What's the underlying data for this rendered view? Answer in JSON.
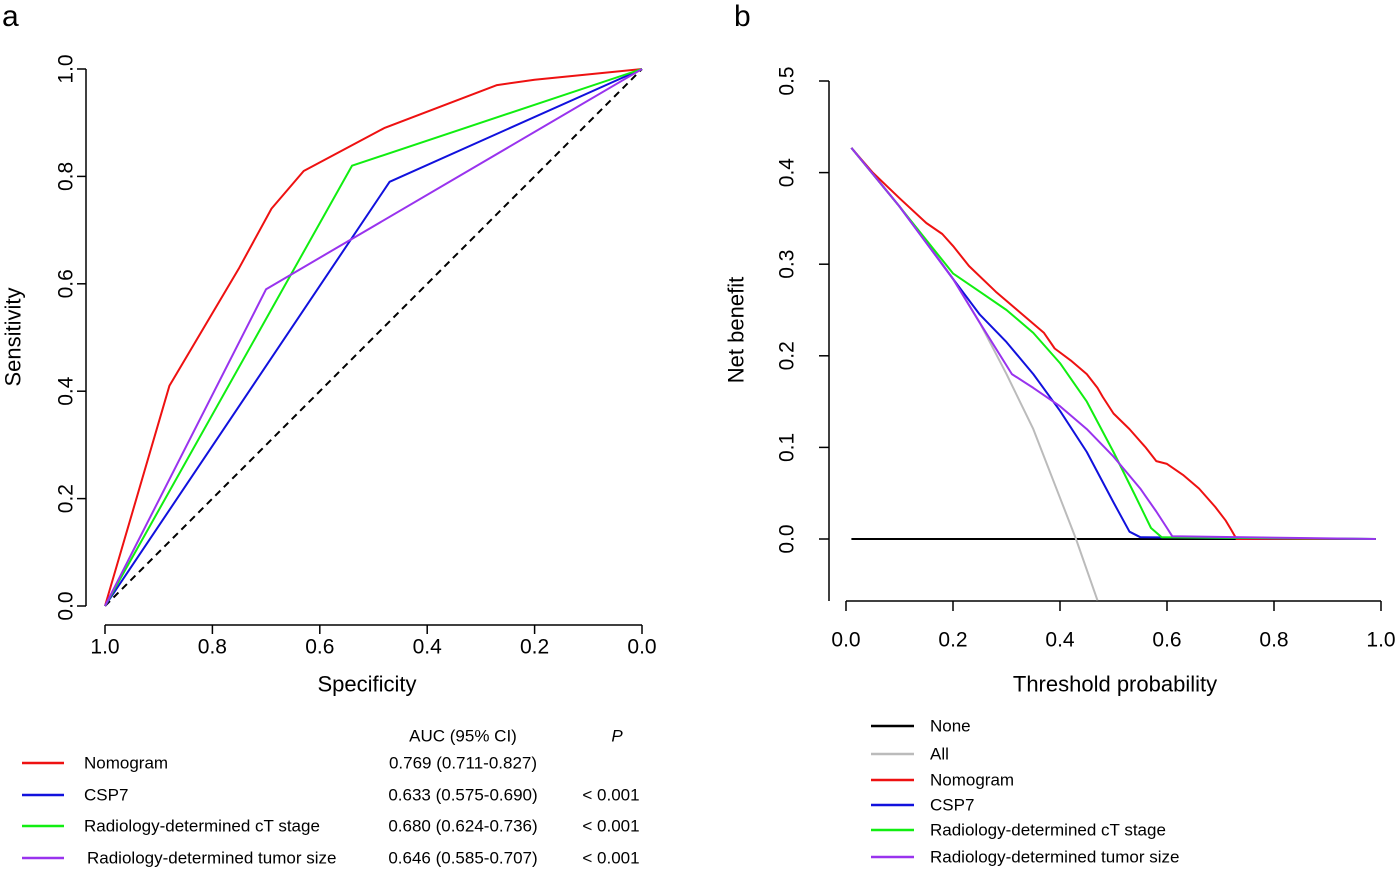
{
  "panels": {
    "a_label": "a",
    "b_label": "b"
  },
  "chart_data": [
    {
      "type": "line",
      "panel": "a",
      "xlabel": "Specificity",
      "ylabel": "Sensitivity",
      "xlim": [
        1.0,
        0.0
      ],
      "ylim": [
        0.0,
        1.0
      ],
      "x_reversed": true,
      "xticks": [
        "1.0",
        "0.8",
        "0.6",
        "0.4",
        "0.2",
        "0.0"
      ],
      "yticks": [
        "0.0",
        "0.2",
        "0.4",
        "0.6",
        "0.8",
        "1.0"
      ],
      "grid": false,
      "legend_position": "bottom",
      "reference_line": {
        "style": "dashed",
        "color": "#000000",
        "x": [
          1.0,
          0.0
        ],
        "y": [
          0.0,
          1.0
        ]
      },
      "table_headers": {
        "auc": "AUC (95% CI)",
        "p": "P"
      },
      "series": [
        {
          "name": "Nomogram",
          "color": "#ee1111",
          "auc": "0.769 (0.711-0.827)",
          "p": "",
          "x": [
            1.0,
            0.88,
            0.75,
            0.69,
            0.63,
            0.48,
            0.27,
            0.2,
            0.0
          ],
          "y": [
            0.0,
            0.41,
            0.63,
            0.74,
            0.81,
            0.89,
            0.97,
            0.98,
            1.0
          ]
        },
        {
          "name": "CSP7",
          "color": "#1111dd",
          "auc": "0.633 (0.575-0.690)",
          "p": "< 0.001",
          "x": [
            1.0,
            0.47,
            0.0
          ],
          "y": [
            0.0,
            0.79,
            1.0
          ]
        },
        {
          "name": "Radiology-determined cT stage",
          "color": "#11ee11",
          "auc": "0.680 (0.624-0.736)",
          "p": "< 0.001",
          "x": [
            1.0,
            0.54,
            0.0
          ],
          "y": [
            0.0,
            0.82,
            1.0
          ]
        },
        {
          "name": "Radiology-determined tumor size",
          "color": "#9933ee",
          "auc": "0.646 (0.585-0.707)",
          "p": "< 0.001",
          "x": [
            1.0,
            0.7,
            0.0
          ],
          "y": [
            0.0,
            0.59,
            1.0
          ]
        }
      ]
    },
    {
      "type": "line",
      "panel": "b",
      "xlabel": "Threshold probability",
      "ylabel": "Net benefit",
      "xlim": [
        -0.02,
        1.02
      ],
      "ylim": [
        -0.07,
        0.5
      ],
      "xticks": [
        "0.0",
        "0.2",
        "0.4",
        "0.6",
        "0.8",
        "1.0"
      ],
      "yticks": [
        "0.0",
        "0.1",
        "0.2",
        "0.3",
        "0.4",
        "0.5"
      ],
      "grid": false,
      "legend_position": "bottom",
      "series": [
        {
          "name": "None",
          "color": "#000000",
          "x": [
            0.01,
            0.99
          ],
          "y": [
            0.0,
            0.0
          ]
        },
        {
          "name": "All",
          "color": "#bbbbbb",
          "x": [
            0.01,
            0.05,
            0.1,
            0.15,
            0.2,
            0.25,
            0.3,
            0.35,
            0.4,
            0.43,
            0.47
          ],
          "y": [
            0.427,
            0.399,
            0.363,
            0.325,
            0.284,
            0.236,
            0.18,
            0.12,
            0.045,
            0.0,
            -0.067
          ]
        },
        {
          "name": "Nomogram",
          "color": "#ee1111",
          "x": [
            0.01,
            0.05,
            0.1,
            0.15,
            0.18,
            0.2,
            0.23,
            0.28,
            0.32,
            0.35,
            0.37,
            0.39,
            0.42,
            0.45,
            0.47,
            0.48,
            0.5,
            0.53,
            0.56,
            0.58,
            0.6,
            0.63,
            0.66,
            0.69,
            0.71,
            0.72,
            0.73,
            0.99
          ],
          "y": [
            0.427,
            0.4,
            0.372,
            0.345,
            0.333,
            0.32,
            0.298,
            0.27,
            0.25,
            0.235,
            0.225,
            0.208,
            0.195,
            0.18,
            0.165,
            0.155,
            0.137,
            0.12,
            0.1,
            0.085,
            0.082,
            0.07,
            0.055,
            0.035,
            0.02,
            0.01,
            0.0,
            0.0
          ]
        },
        {
          "name": "CSP7",
          "color": "#1111dd",
          "x": [
            0.01,
            0.1,
            0.2,
            0.25,
            0.3,
            0.35,
            0.4,
            0.45,
            0.5,
            0.53,
            0.55,
            0.99
          ],
          "y": [
            0.427,
            0.363,
            0.284,
            0.245,
            0.215,
            0.18,
            0.14,
            0.095,
            0.04,
            0.008,
            0.002,
            0.0
          ]
        },
        {
          "name": "Radiology-determined cT stage",
          "color": "#11ee11",
          "x": [
            0.01,
            0.1,
            0.2,
            0.25,
            0.3,
            0.35,
            0.4,
            0.45,
            0.5,
            0.54,
            0.57,
            0.59,
            0.99
          ],
          "y": [
            0.427,
            0.363,
            0.29,
            0.27,
            0.25,
            0.225,
            0.192,
            0.15,
            0.095,
            0.048,
            0.012,
            0.002,
            0.0
          ]
        },
        {
          "name": "Radiology-determined tumor size",
          "color": "#9933ee",
          "x": [
            0.01,
            0.1,
            0.2,
            0.25,
            0.31,
            0.35,
            0.4,
            0.45,
            0.5,
            0.55,
            0.58,
            0.6,
            0.61,
            0.99
          ],
          "y": [
            0.427,
            0.363,
            0.284,
            0.236,
            0.18,
            0.165,
            0.145,
            0.12,
            0.09,
            0.055,
            0.03,
            0.012,
            0.003,
            0.0
          ]
        }
      ]
    }
  ]
}
